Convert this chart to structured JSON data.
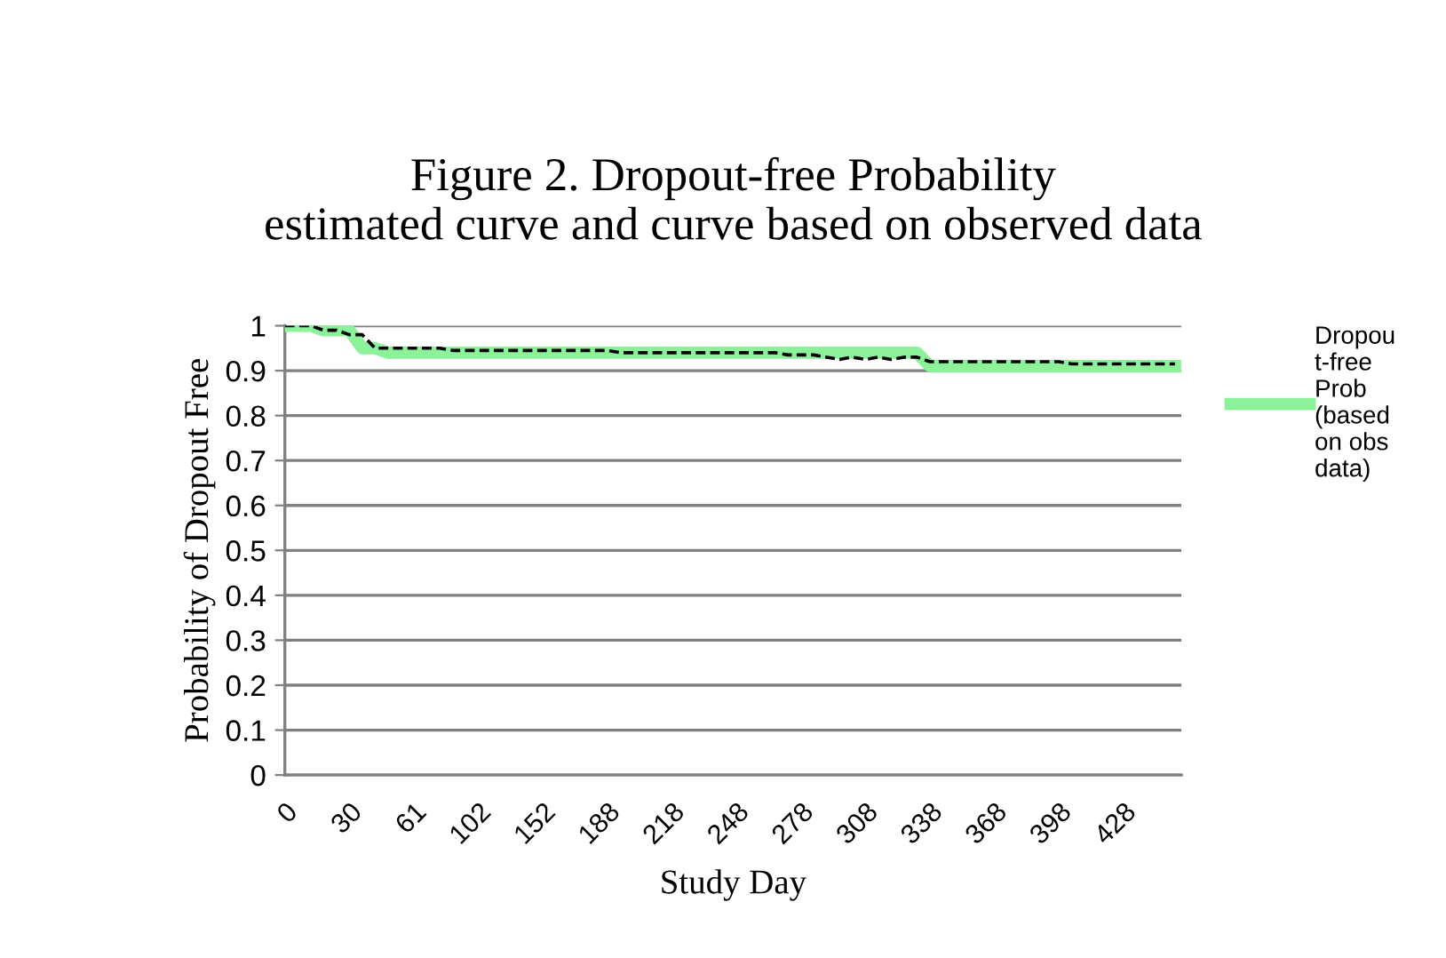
{
  "chart_data": {
    "type": "line",
    "title": "Figure 2. Dropout-free Probability\nestimated curve and curve based on observed data",
    "xlabel": "Study Day",
    "ylabel": "Probability of Dropout Free",
    "categories": [
      "0",
      null,
      null,
      null,
      null,
      "30",
      null,
      null,
      null,
      null,
      "61",
      null,
      null,
      null,
      null,
      "102",
      null,
      null,
      null,
      null,
      "152",
      null,
      null,
      null,
      null,
      "188",
      null,
      null,
      null,
      null,
      "218",
      null,
      null,
      null,
      null,
      "248",
      null,
      null,
      null,
      null,
      "278",
      null,
      null,
      null,
      null,
      "308",
      null,
      null,
      null,
      null,
      "338",
      null,
      null,
      null,
      null,
      "368",
      null,
      null,
      null,
      null,
      "398",
      null,
      null,
      null,
      null,
      "428",
      null,
      null,
      null,
      null
    ],
    "series": [
      {
        "name": "Dropout-free Prob (based on obs data)",
        "color": "#8cf29a",
        "line_style": "solid",
        "values": [
          1.0,
          1.0,
          1.0,
          0.99,
          0.99,
          0.99,
          0.95,
          0.95,
          0.94,
          0.94,
          0.94,
          0.94,
          0.94,
          0.94,
          0.94,
          0.94,
          0.94,
          0.94,
          0.94,
          0.94,
          0.94,
          0.94,
          0.94,
          0.94,
          0.94,
          0.94,
          0.94,
          0.94,
          0.94,
          0.94,
          0.94,
          0.94,
          0.94,
          0.94,
          0.94,
          0.94,
          0.94,
          0.94,
          0.94,
          0.94,
          0.94,
          0.94,
          0.94,
          0.94,
          0.94,
          0.94,
          0.94,
          0.94,
          0.94,
          0.94,
          0.91,
          0.91,
          0.91,
          0.91,
          0.91,
          0.91,
          0.91,
          0.91,
          0.91,
          0.91,
          0.91,
          0.91,
          0.91,
          0.91,
          0.91,
          0.91,
          0.91,
          0.91,
          0.91,
          0.91
        ]
      },
      {
        "color": "#000000",
        "line_style": "dashed",
        "values": [
          1.0,
          1.0,
          1.0,
          0.99,
          0.99,
          0.98,
          0.98,
          0.95,
          0.95,
          0.95,
          0.95,
          0.95,
          0.95,
          0.945,
          0.945,
          0.945,
          0.945,
          0.945,
          0.945,
          0.945,
          0.945,
          0.945,
          0.945,
          0.945,
          0.945,
          0.945,
          0.94,
          0.94,
          0.94,
          0.94,
          0.94,
          0.94,
          0.94,
          0.94,
          0.94,
          0.94,
          0.94,
          0.94,
          0.94,
          0.935,
          0.935,
          0.935,
          0.93,
          0.925,
          0.93,
          0.925,
          0.93,
          0.925,
          0.93,
          0.93,
          0.92,
          0.92,
          0.92,
          0.92,
          0.92,
          0.92,
          0.92,
          0.92,
          0.92,
          0.92,
          0.92,
          0.915,
          0.915,
          0.915,
          0.915,
          0.915,
          0.915,
          0.915,
          0.915,
          0.915
        ]
      }
    ],
    "ylim": [
      0,
      1
    ],
    "yticks": [
      0,
      0.1,
      0.2,
      0.3,
      0.4,
      0.5,
      0.6,
      0.7,
      0.8,
      0.9,
      1
    ],
    "grid": "y",
    "legend": "right",
    "marker": "none"
  }
}
